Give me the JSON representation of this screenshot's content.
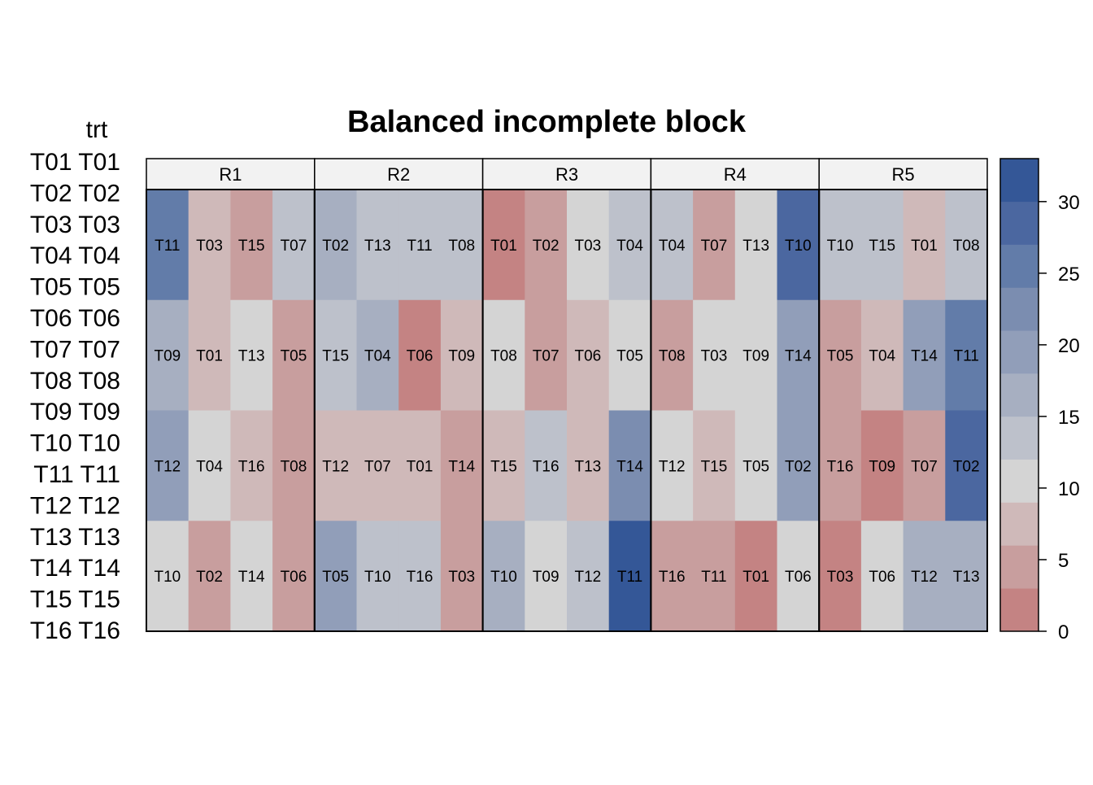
{
  "chart_data": {
    "type": "heatmap",
    "title": "Balanced incomplete block",
    "legend_title": "trt",
    "legend_entries": [
      "T01 T01",
      "T02 T02",
      "T03 T03",
      "T04 T04",
      "T05 T05",
      "T06 T06",
      "T07 T07",
      "T08 T08",
      "T09 T09",
      "T10 T10",
      "T11 T11",
      "T12 T12",
      "T13 T13",
      "T14 T14",
      "T15 T15",
      "T16 T16"
    ],
    "panels": [
      "R1",
      "R2",
      "R3",
      "R4",
      "R5"
    ],
    "color_scale": {
      "min": 0,
      "max": 33,
      "ticks": [
        0,
        5,
        10,
        15,
        20,
        25,
        30
      ],
      "breaks": [
        0,
        3,
        6,
        9,
        12,
        15,
        18,
        21,
        24,
        27,
        30,
        33
      ],
      "colors": [
        "#C48383",
        "#C89E9E",
        "#CFB9B9",
        "#D4D4D4",
        "#BDC1CB",
        "#A7AFC1",
        "#919EB9",
        "#7B8DB0",
        "#627CA9",
        "#4B67A0",
        "#345797"
      ]
    },
    "plots": [
      {
        "panel": "R1",
        "rows": [
          {
            "labels": [
              "T11",
              "T03",
              "T15",
              "T07"
            ],
            "values": [
              25.5,
              7.5,
              4.5,
              13.5
            ]
          },
          {
            "labels": [
              "T09",
              "T01",
              "T13",
              "T05"
            ],
            "values": [
              16.5,
              7.5,
              10.5,
              4.5
            ]
          },
          {
            "labels": [
              "T12",
              "T04",
              "T16",
              "T08"
            ],
            "values": [
              19.5,
              10.5,
              7.5,
              4.5
            ]
          },
          {
            "labels": [
              "T10",
              "T02",
              "T14",
              "T06"
            ],
            "values": [
              10.5,
              4.5,
              10.5,
              4.5
            ]
          }
        ]
      },
      {
        "panel": "R2",
        "rows": [
          {
            "labels": [
              "T02",
              "T13",
              "T11",
              "T08"
            ],
            "values": [
              16.5,
              13.5,
              13.5,
              13.5
            ]
          },
          {
            "labels": [
              "T15",
              "T04",
              "T06",
              "T09"
            ],
            "values": [
              13.5,
              16.5,
              1.5,
              7.5
            ]
          },
          {
            "labels": [
              "T12",
              "T07",
              "T01",
              "T14"
            ],
            "values": [
              7.5,
              7.5,
              7.5,
              4.5
            ]
          },
          {
            "labels": [
              "T05",
              "T10",
              "T16",
              "T03"
            ],
            "values": [
              19.5,
              13.5,
              13.5,
              4.5
            ]
          }
        ]
      },
      {
        "panel": "R3",
        "rows": [
          {
            "labels": [
              "T01",
              "T02",
              "T03",
              "T04"
            ],
            "values": [
              1.5,
              4.5,
              10.5,
              13.5
            ]
          },
          {
            "labels": [
              "T08",
              "T07",
              "T06",
              "T05"
            ],
            "values": [
              10.5,
              4.5,
              7.5,
              10.5
            ]
          },
          {
            "labels": [
              "T15",
              "T16",
              "T13",
              "T14"
            ],
            "values": [
              7.5,
              13.5,
              7.5,
              22.5
            ]
          },
          {
            "labels": [
              "T10",
              "T09",
              "T12",
              "T11"
            ],
            "values": [
              16.5,
              10.5,
              13.5,
              31.5
            ]
          }
        ]
      },
      {
        "panel": "R4",
        "rows": [
          {
            "labels": [
              "T04",
              "T07",
              "T13",
              "T10"
            ],
            "values": [
              13.5,
              4.5,
              10.5,
              28.5
            ]
          },
          {
            "labels": [
              "T08",
              "T03",
              "T09",
              "T14"
            ],
            "values": [
              4.5,
              10.5,
              10.5,
              19.5
            ]
          },
          {
            "labels": [
              "T12",
              "T15",
              "T05",
              "T02"
            ],
            "values": [
              10.5,
              7.5,
              10.5,
              19.5
            ]
          },
          {
            "labels": [
              "T16",
              "T11",
              "T01",
              "T06"
            ],
            "values": [
              4.5,
              4.5,
              1.5,
              10.5
            ]
          }
        ]
      },
      {
        "panel": "R5",
        "rows": [
          {
            "labels": [
              "T10",
              "T15",
              "T01",
              "T08"
            ],
            "values": [
              13.5,
              13.5,
              7.5,
              13.5
            ]
          },
          {
            "labels": [
              "T05",
              "T04",
              "T14",
              "T11"
            ],
            "values": [
              4.5,
              7.5,
              19.5,
              25.5
            ]
          },
          {
            "labels": [
              "T16",
              "T09",
              "T07",
              "T02"
            ],
            "values": [
              4.5,
              1.5,
              4.5,
              28.5
            ]
          },
          {
            "labels": [
              "T03",
              "T06",
              "T12",
              "T13"
            ],
            "values": [
              1.5,
              10.5,
              16.5,
              16.5
            ]
          }
        ]
      }
    ]
  }
}
